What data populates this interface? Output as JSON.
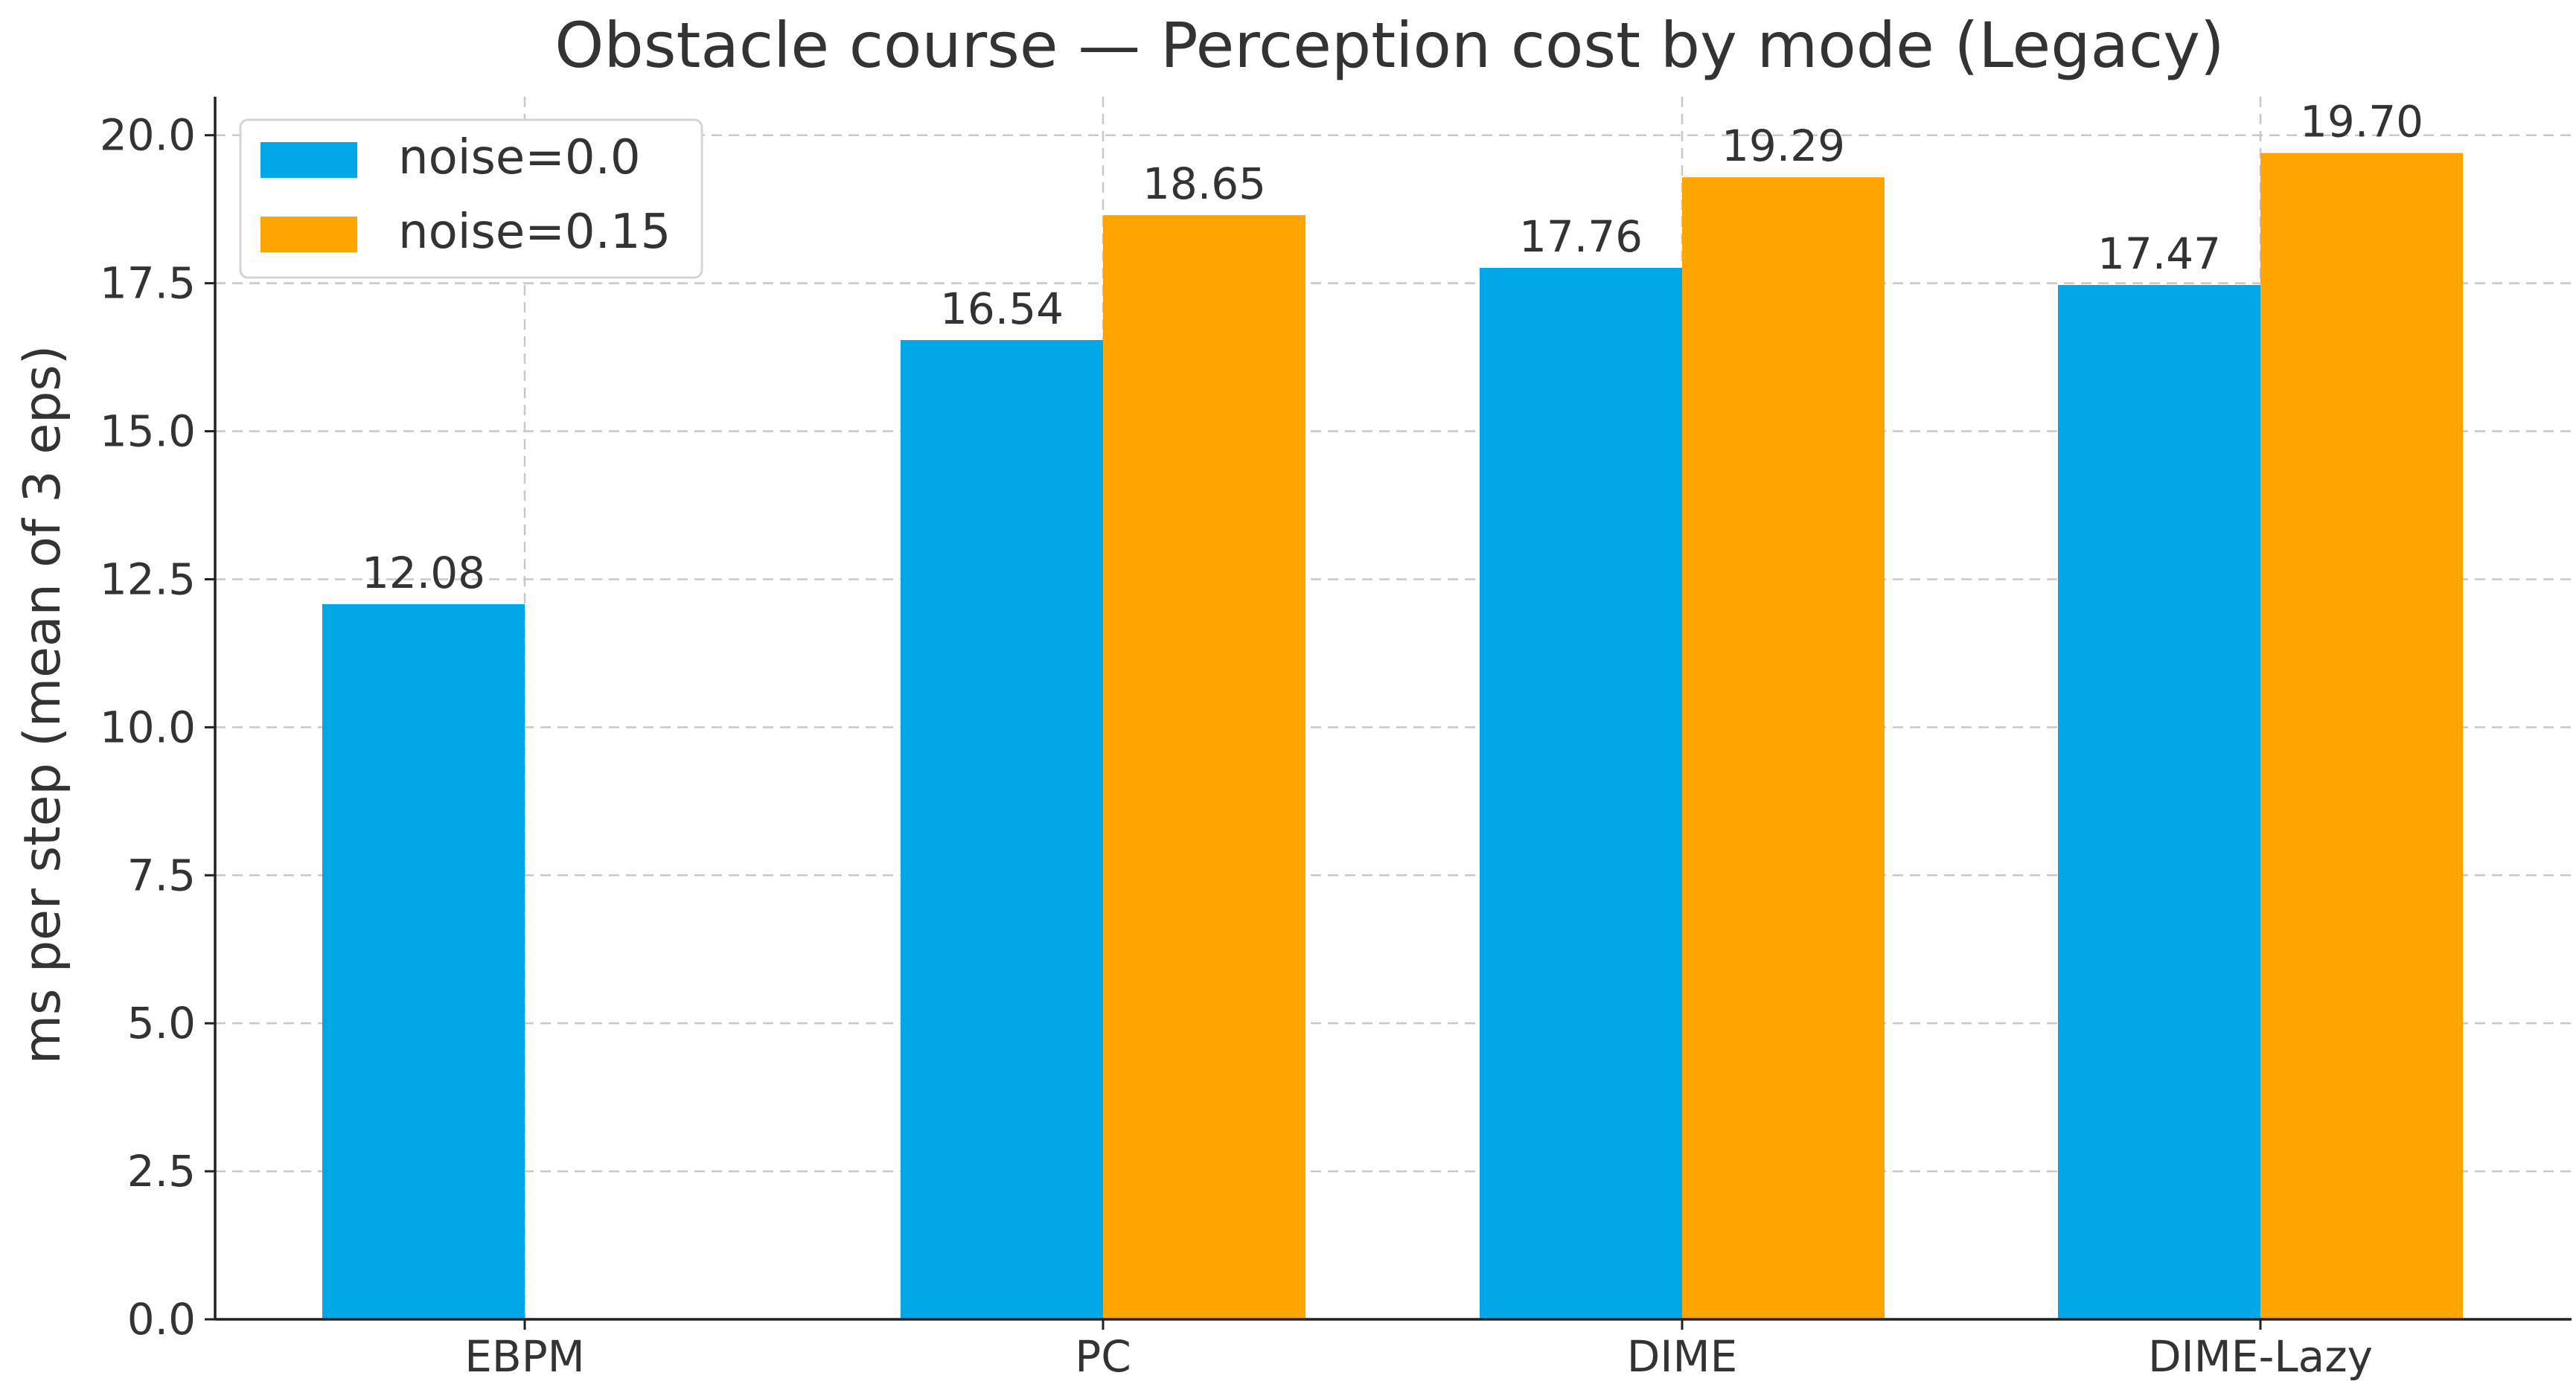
{
  "chart_data": {
    "type": "bar",
    "title": "Obstacle course — Perception cost by mode (Legacy)",
    "xlabel": "",
    "ylabel": "ms per step (mean of 3 eps)",
    "categories": [
      "EBPM",
      "PC",
      "DIME",
      "DIME-Lazy"
    ],
    "series": [
      {
        "name": "noise=0.0",
        "color": "#00A8E8",
        "values": [
          12.08,
          16.54,
          17.76,
          17.47
        ],
        "labels": [
          "12.08",
          "16.54",
          "17.76",
          "17.47"
        ]
      },
      {
        "name": "noise=0.15",
        "color": "#FFA500",
        "values": [
          null,
          18.65,
          19.29,
          19.7
        ],
        "labels": [
          "",
          "18.65",
          "19.29",
          "19.70"
        ]
      }
    ],
    "ylim": [
      0,
      20.65
    ],
    "yticks": [
      0.0,
      2.5,
      5.0,
      7.5,
      10.0,
      12.5,
      15.0,
      17.5,
      20.0
    ],
    "ytick_labels": [
      "0.0",
      "2.5",
      "5.0",
      "7.5",
      "10.0",
      "12.5",
      "15.0",
      "17.5",
      "20.0"
    ],
    "grid": true,
    "legend_position": "top-left"
  }
}
